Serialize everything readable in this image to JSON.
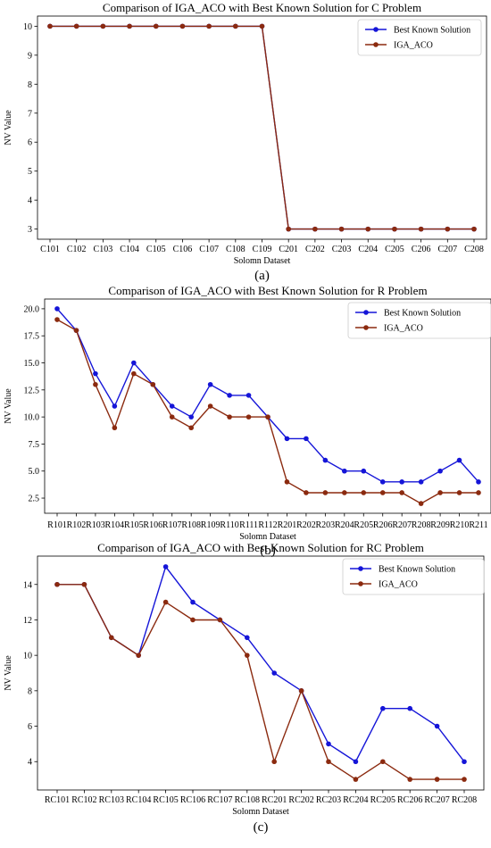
{
  "chart_data": [
    {
      "type": "line",
      "title": "Comparison of IGA_ACO with Best Known Solution for C Problem",
      "xlabel": "Solomn Dataset",
      "ylabel": "NV Value",
      "panel_label": "(a)",
      "categories": [
        "C101",
        "C102",
        "C103",
        "C104",
        "C105",
        "C106",
        "C107",
        "C108",
        "C109",
        "C201",
        "C202",
        "C203",
        "C204",
        "C205",
        "C206",
        "C207",
        "C208"
      ],
      "ylim": [
        2.65,
        10.35
      ],
      "yticks": [
        3,
        4,
        5,
        6,
        7,
        8,
        9,
        10
      ],
      "ytick_labels": [
        "3",
        "4",
        "5",
        "6",
        "7",
        "8",
        "9",
        "10"
      ],
      "legend_position": "top-right",
      "grid": false,
      "series": [
        {
          "name": "Best Known Solution",
          "color": "#1515d8",
          "values": [
            10,
            10,
            10,
            10,
            10,
            10,
            10,
            10,
            10,
            3,
            3,
            3,
            3,
            3,
            3,
            3,
            3
          ]
        },
        {
          "name": "IGA_ACO",
          "color": "#8b2a0f",
          "values": [
            10,
            10,
            10,
            10,
            10,
            10,
            10,
            10,
            10,
            3,
            3,
            3,
            3,
            3,
            3,
            3,
            3
          ]
        }
      ]
    },
    {
      "type": "line",
      "title": "Comparison of IGA_ACO with Best Known Solution for R Problem",
      "xlabel": "Solomn Dataset",
      "ylabel": "NV Value",
      "panel_label": "(b)",
      "categories": [
        "R101",
        "R102",
        "R103",
        "R104",
        "R105",
        "R106",
        "R107",
        "R108",
        "R109",
        "R110",
        "R111",
        "R112",
        "R201",
        "R202",
        "R203",
        "R204",
        "R205",
        "R206",
        "R207",
        "R208",
        "R209",
        "R210",
        "R211"
      ],
      "ylim": [
        1.1,
        20.9
      ],
      "yticks": [
        2.5,
        5,
        7.5,
        10,
        12.5,
        15,
        17.5,
        20
      ],
      "ytick_labels": [
        "2.5",
        "5.0",
        "7.5",
        "10.0",
        "12.5",
        "15.0",
        "17.5",
        "20.0"
      ],
      "legend_position": "top-right",
      "grid": false,
      "series": [
        {
          "name": "Best Known Solution",
          "color": "#1515d8",
          "values": [
            20,
            18,
            14,
            11,
            15,
            13,
            11,
            10,
            13,
            12,
            12,
            10,
            8,
            8,
            6,
            5,
            5,
            4,
            4,
            4,
            5,
            6,
            4
          ]
        },
        {
          "name": "IGA_ACO",
          "color": "#8b2a0f",
          "values": [
            19,
            18,
            13,
            9,
            14,
            13,
            10,
            9,
            11,
            10,
            10,
            10,
            4,
            3,
            3,
            3,
            3,
            3,
            3,
            2,
            3,
            3,
            3
          ]
        }
      ]
    },
    {
      "type": "line",
      "title": "Comparison of IGA_ACO with Best Known Solution for RC Problem",
      "xlabel": "Solomn Dataset",
      "ylabel": "NV Value",
      "panel_label": "(c)",
      "categories": [
        "RC101",
        "RC102",
        "RC103",
        "RC104",
        "RC105",
        "RC106",
        "RC107",
        "RC108",
        "RC201",
        "RC202",
        "RC203",
        "RC204",
        "RC205",
        "RC206",
        "RC207",
        "RC208"
      ],
      "ylim": [
        2.4,
        15.6
      ],
      "yticks": [
        4,
        6,
        8,
        10,
        12,
        14
      ],
      "ytick_labels": [
        "4",
        "6",
        "8",
        "10",
        "12",
        "14"
      ],
      "legend_position": "top-right",
      "grid": false,
      "series": [
        {
          "name": "Best Known Solution",
          "color": "#1515d8",
          "values": [
            14,
            14,
            11,
            10,
            15,
            13,
            12,
            11,
            9,
            8,
            5,
            4,
            7,
            7,
            6,
            4
          ]
        },
        {
          "name": "IGA_ACO",
          "color": "#8b2a0f",
          "values": [
            14,
            14,
            11,
            10,
            13,
            12,
            12,
            10,
            4,
            8,
            4,
            3,
            4,
            3,
            3,
            3
          ]
        }
      ]
    }
  ]
}
